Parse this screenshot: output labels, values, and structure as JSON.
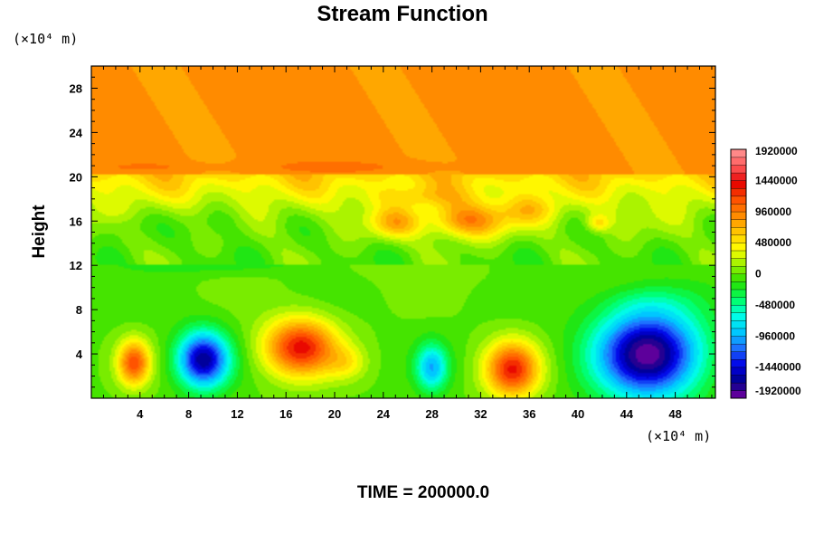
{
  "chart_data": {
    "type": "heatmap",
    "title": "Stream Function",
    "xlabel": "",
    "ylabel": "Height",
    "x_unit_label": "(×10⁴ m)",
    "y_unit_label": "(×10⁴ m)",
    "xlim": [
      0,
      51.3
    ],
    "ylim": [
      0,
      30
    ],
    "x_ticks": [
      4,
      8,
      12,
      16,
      20,
      24,
      28,
      32,
      36,
      40,
      44,
      48
    ],
    "y_ticks": [
      4,
      8,
      12,
      16,
      20,
      24,
      28
    ],
    "colorbar": {
      "min": -1920000,
      "max": 1920000,
      "levels": 32,
      "tick_values": [
        1920000,
        1440000,
        960000,
        480000,
        0,
        -480000,
        -960000,
        -1440000,
        -1920000
      ],
      "tick_labels": [
        "1920000",
        "1440000",
        "960000",
        "480000",
        "0",
        "-480000",
        "-960000",
        "-1440000",
        "-1920000"
      ]
    },
    "background_value": 870000,
    "features": [
      {
        "x": 3.5,
        "y": 3.2,
        "value": 1150000
      },
      {
        "x": 9.2,
        "y": 3.5,
        "value": -1600000
      },
      {
        "x": 17.2,
        "y": 4.6,
        "value": 1300000
      },
      {
        "x": 28.0,
        "y": 2.8,
        "value": -900000
      },
      {
        "x": 34.6,
        "y": 2.6,
        "value": 1300000
      },
      {
        "x": 45.8,
        "y": 4.0,
        "value": -1800000
      },
      {
        "x": 30.8,
        "y": 16.0,
        "value": 1450000
      },
      {
        "x": 25.0,
        "y": 15.8,
        "value": 1150000
      },
      {
        "x": 36.0,
        "y": 17.0,
        "value": 1050000
      },
      {
        "x": 41.5,
        "y": 15.8,
        "value": 1000000
      },
      {
        "x": 20.5,
        "y": 16.5,
        "value": 700000
      }
    ],
    "annotations": [
      "TIME = 200000.0"
    ]
  },
  "palette": [
    "#7a00a0",
    "#00008c",
    "#0000e6",
    "#1e6eff",
    "#00c8ff",
    "#00ffe6",
    "#00ff64",
    "#28e000",
    "#96f000",
    "#ffff00",
    "#ffc800",
    "#ff8c00",
    "#ff5000",
    "#e60000",
    "#ff5a5a",
    "#ff9696"
  ],
  "axis_color": "#000000"
}
